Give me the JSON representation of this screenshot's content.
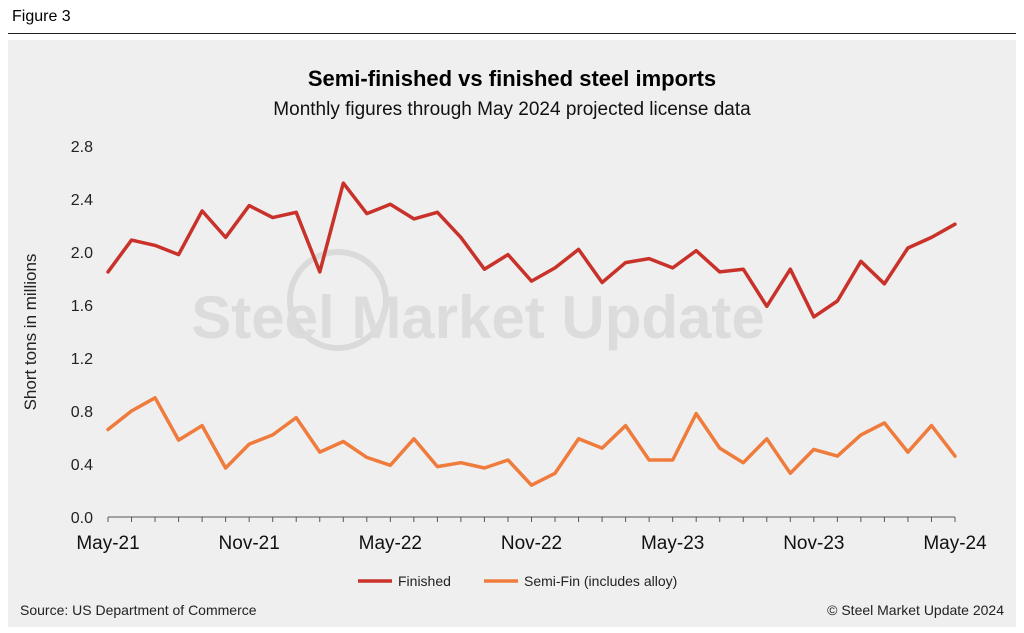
{
  "figure_label": "Figure 3",
  "source": "Source: US Department of Commerce",
  "copyright": "© Steel Market Update 2024",
  "watermark": "Steel Market Update",
  "colors": {
    "finished": "#c8322a",
    "semi": "#ef7b3c",
    "panel": "#efefef",
    "watermark": "#dcdcdc"
  },
  "chart_data": {
    "type": "line",
    "title": "Semi-finished vs finished steel imports",
    "subtitle": "Monthly figures through May 2024 projected license data",
    "xlabel": "",
    "ylabel": "Short tons in millions",
    "ylim": [
      0,
      2.8
    ],
    "y_ticks": [
      "0.0",
      "0.4",
      "0.8",
      "1.2",
      "1.6",
      "2.0",
      "2.4",
      "2.8"
    ],
    "x_tick_labels": [
      "May-21",
      "Nov-21",
      "May-22",
      "Nov-22",
      "May-23",
      "Nov-23",
      "May-24"
    ],
    "x_tick_indices": [
      0,
      6,
      12,
      18,
      24,
      30,
      36
    ],
    "categories": [
      "May-21",
      "Jun-21",
      "Jul-21",
      "Aug-21",
      "Sep-21",
      "Oct-21",
      "Nov-21",
      "Dec-21",
      "Jan-22",
      "Feb-22",
      "Mar-22",
      "Apr-22",
      "May-22",
      "Jun-22",
      "Jul-22",
      "Aug-22",
      "Sep-22",
      "Oct-22",
      "Nov-22",
      "Dec-22",
      "Jan-23",
      "Feb-23",
      "Mar-23",
      "Apr-23",
      "May-23",
      "Jun-23",
      "Jul-23",
      "Aug-23",
      "Sep-23",
      "Oct-23",
      "Nov-23",
      "Dec-23",
      "Jan-24",
      "Feb-24",
      "Mar-24",
      "Apr-24",
      "May-24"
    ],
    "series": [
      {
        "name": "Finished",
        "values": [
          1.85,
          2.09,
          2.05,
          1.98,
          2.31,
          2.11,
          2.35,
          2.26,
          2.3,
          1.85,
          2.52,
          2.29,
          2.36,
          2.25,
          2.3,
          2.11,
          1.87,
          1.98,
          1.78,
          1.88,
          2.02,
          1.77,
          1.92,
          1.95,
          1.88,
          2.01,
          1.85,
          1.87,
          1.59,
          1.87,
          1.51,
          1.63,
          1.93,
          1.76,
          2.03,
          2.11,
          2.21
        ]
      },
      {
        "name": "Semi-Fin (includes alloy)",
        "values": [
          0.66,
          0.8,
          0.9,
          0.58,
          0.69,
          0.37,
          0.55,
          0.62,
          0.75,
          0.49,
          0.57,
          0.45,
          0.39,
          0.59,
          0.38,
          0.41,
          0.37,
          0.43,
          0.24,
          0.33,
          0.59,
          0.52,
          0.69,
          0.43,
          0.43,
          0.78,
          0.52,
          0.41,
          0.59,
          0.33,
          0.51,
          0.46,
          0.62,
          0.71,
          0.49,
          0.69,
          0.46
        ]
      }
    ],
    "legend_position": "bottom-center",
    "grid": false
  }
}
